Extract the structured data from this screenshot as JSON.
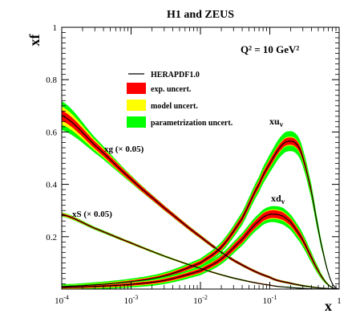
{
  "chart_data": {
    "type": "line",
    "title": "H1 and ZEUS",
    "annotation": "Q² = 10 GeV²",
    "xlabel": "x",
    "ylabel": "xf",
    "x_scale": "log",
    "xlim": [
      0.0001,
      1
    ],
    "ylim": [
      0,
      1
    ],
    "x_ticks": [
      {
        "value": 0.0001,
        "base": "10",
        "exp": "-4"
      },
      {
        "value": 0.001,
        "base": "10",
        "exp": "-3"
      },
      {
        "value": 0.01,
        "base": "10",
        "exp": "-2"
      },
      {
        "value": 0.1,
        "base": "10",
        "exp": "-1"
      },
      {
        "value": 1,
        "base": "1",
        "exp": ""
      }
    ],
    "y_ticks": [
      {
        "value": 0.2,
        "label": "0.2"
      },
      {
        "value": 0.4,
        "label": "0.4"
      },
      {
        "value": 0.6,
        "label": "0.6"
      },
      {
        "value": 0.8,
        "label": "0.8"
      },
      {
        "value": 1.0,
        "label": "1"
      }
    ],
    "legend": {
      "placement": "upper-center",
      "entries": [
        {
          "label": "HERAPDF1.0",
          "style": "line",
          "color": "#000000"
        },
        {
          "label": "exp. uncert.",
          "style": "box",
          "color": "#ff0000"
        },
        {
          "label": "model uncert.",
          "style": "box",
          "color": "#ffff00"
        },
        {
          "label": "parametrization uncert.",
          "style": "box",
          "color": "#00ff00"
        }
      ]
    },
    "colors": {
      "central": "#000000",
      "exp": "#ff0000",
      "model": "#ffff00",
      "param": "#00ff00"
    },
    "series": [
      {
        "label_text": "xg (× 0.05)",
        "x": [
          0.0001,
          0.0003,
          0.001,
          0.003,
          0.01,
          0.03,
          0.1,
          0.2,
          0.4,
          0.7,
          1.0
        ],
        "central": [
          0.663,
          0.55,
          0.42,
          0.31,
          0.2,
          0.11,
          0.045,
          0.022,
          0.008,
          0.002,
          0.0
        ],
        "exp_band": [
          0.02,
          0.014,
          0.01,
          0.008,
          0.006,
          0.005,
          0.004,
          0.003,
          0.002,
          0.001,
          0.0
        ],
        "model_band": [
          0.035,
          0.02,
          0.012,
          0.009,
          0.007,
          0.005,
          0.004,
          0.003,
          0.002,
          0.001,
          0.0
        ],
        "param_band": [
          0.055,
          0.03,
          0.015,
          0.01,
          0.008,
          0.006,
          0.005,
          0.004,
          0.003,
          0.001,
          0.0
        ]
      },
      {
        "label_text": "xS (× 0.05)",
        "x": [
          0.0001,
          0.0003,
          0.001,
          0.003,
          0.01,
          0.03,
          0.1,
          0.2,
          0.4,
          0.7,
          1.0
        ],
        "central": [
          0.285,
          0.232,
          0.176,
          0.126,
          0.079,
          0.042,
          0.015,
          0.006,
          0.001,
          0.0,
          0.0
        ],
        "exp_band": [
          0.004,
          0.003,
          0.003,
          0.002,
          0.002,
          0.002,
          0.002,
          0.001,
          0.001,
          0.0,
          0.0
        ],
        "model_band": [
          0.006,
          0.004,
          0.004,
          0.003,
          0.003,
          0.002,
          0.002,
          0.001,
          0.001,
          0.0,
          0.0
        ],
        "param_band": [
          0.008,
          0.006,
          0.005,
          0.004,
          0.003,
          0.003,
          0.002,
          0.002,
          0.001,
          0.0,
          0.0
        ]
      },
      {
        "label_main": "xu",
        "label_sub": "v",
        "x": [
          0.0001,
          0.0003,
          0.001,
          0.003,
          0.01,
          0.02,
          0.04,
          0.07,
          0.1,
          0.15,
          0.2,
          0.25,
          0.3,
          0.4,
          0.5,
          0.6,
          0.7,
          0.8,
          0.9,
          1.0
        ],
        "central": [
          0.01,
          0.016,
          0.028,
          0.05,
          0.1,
          0.16,
          0.27,
          0.4,
          0.48,
          0.55,
          0.565,
          0.55,
          0.5,
          0.37,
          0.23,
          0.13,
          0.06,
          0.02,
          0.004,
          0.0
        ],
        "exp_band": [
          0.003,
          0.004,
          0.005,
          0.006,
          0.008,
          0.01,
          0.012,
          0.013,
          0.014,
          0.014,
          0.014,
          0.014,
          0.013,
          0.011,
          0.008,
          0.006,
          0.003,
          0.002,
          0.001,
          0.0
        ],
        "model_band": [
          0.005,
          0.006,
          0.007,
          0.008,
          0.01,
          0.012,
          0.014,
          0.016,
          0.017,
          0.017,
          0.017,
          0.017,
          0.016,
          0.013,
          0.01,
          0.007,
          0.004,
          0.002,
          0.001,
          0.0
        ],
        "param_band": [
          0.008,
          0.01,
          0.012,
          0.014,
          0.017,
          0.02,
          0.025,
          0.03,
          0.035,
          0.038,
          0.038,
          0.037,
          0.034,
          0.028,
          0.02,
          0.012,
          0.006,
          0.003,
          0.001,
          0.0
        ]
      },
      {
        "label_main": "xd",
        "label_sub": "v",
        "x": [
          0.0001,
          0.0003,
          0.001,
          0.003,
          0.01,
          0.02,
          0.04,
          0.07,
          0.1,
          0.15,
          0.2,
          0.25,
          0.3,
          0.4,
          0.5,
          0.6,
          0.7,
          0.8,
          0.9,
          1.0
        ],
        "central": [
          0.006,
          0.01,
          0.018,
          0.033,
          0.07,
          0.115,
          0.19,
          0.26,
          0.285,
          0.28,
          0.255,
          0.22,
          0.185,
          0.12,
          0.07,
          0.036,
          0.016,
          0.005,
          0.001,
          0.0
        ],
        "exp_band": [
          0.003,
          0.004,
          0.005,
          0.006,
          0.008,
          0.01,
          0.013,
          0.015,
          0.015,
          0.015,
          0.014,
          0.013,
          0.012,
          0.009,
          0.006,
          0.004,
          0.002,
          0.001,
          0.0,
          0.0
        ],
        "model_band": [
          0.005,
          0.006,
          0.007,
          0.008,
          0.01,
          0.012,
          0.015,
          0.017,
          0.018,
          0.018,
          0.017,
          0.016,
          0.014,
          0.011,
          0.008,
          0.005,
          0.003,
          0.001,
          0.0,
          0.0
        ],
        "param_band": [
          0.008,
          0.01,
          0.012,
          0.014,
          0.017,
          0.02,
          0.024,
          0.028,
          0.03,
          0.032,
          0.03,
          0.028,
          0.026,
          0.02,
          0.014,
          0.008,
          0.004,
          0.002,
          0.001,
          0.0
        ]
      }
    ]
  }
}
